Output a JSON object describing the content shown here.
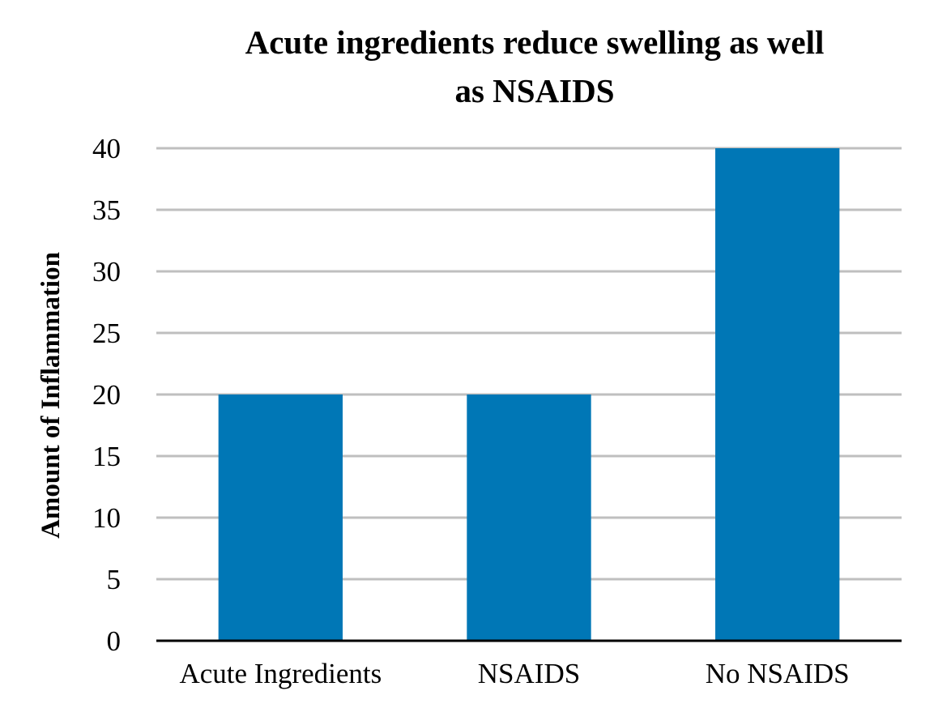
{
  "chart_data": {
    "type": "bar",
    "title_lines": [
      "Acute ingredients reduce swelling as well",
      "as NSAIDS"
    ],
    "title": "Acute ingredients reduce swelling as well as NSAIDS",
    "xlabel": "",
    "ylabel": "Amount of Inflammation",
    "categories": [
      "Acute Ingredients",
      "NSAIDS",
      "No NSAIDS"
    ],
    "values": [
      20,
      20,
      40
    ],
    "ylim": [
      0,
      40
    ],
    "yticks": [
      0,
      5,
      10,
      15,
      20,
      25,
      30,
      35,
      40
    ],
    "grid": true,
    "legend": "none",
    "colors": {
      "bar": "#0077B6",
      "grid": "#BFBFBF",
      "axis": "#000000"
    }
  }
}
